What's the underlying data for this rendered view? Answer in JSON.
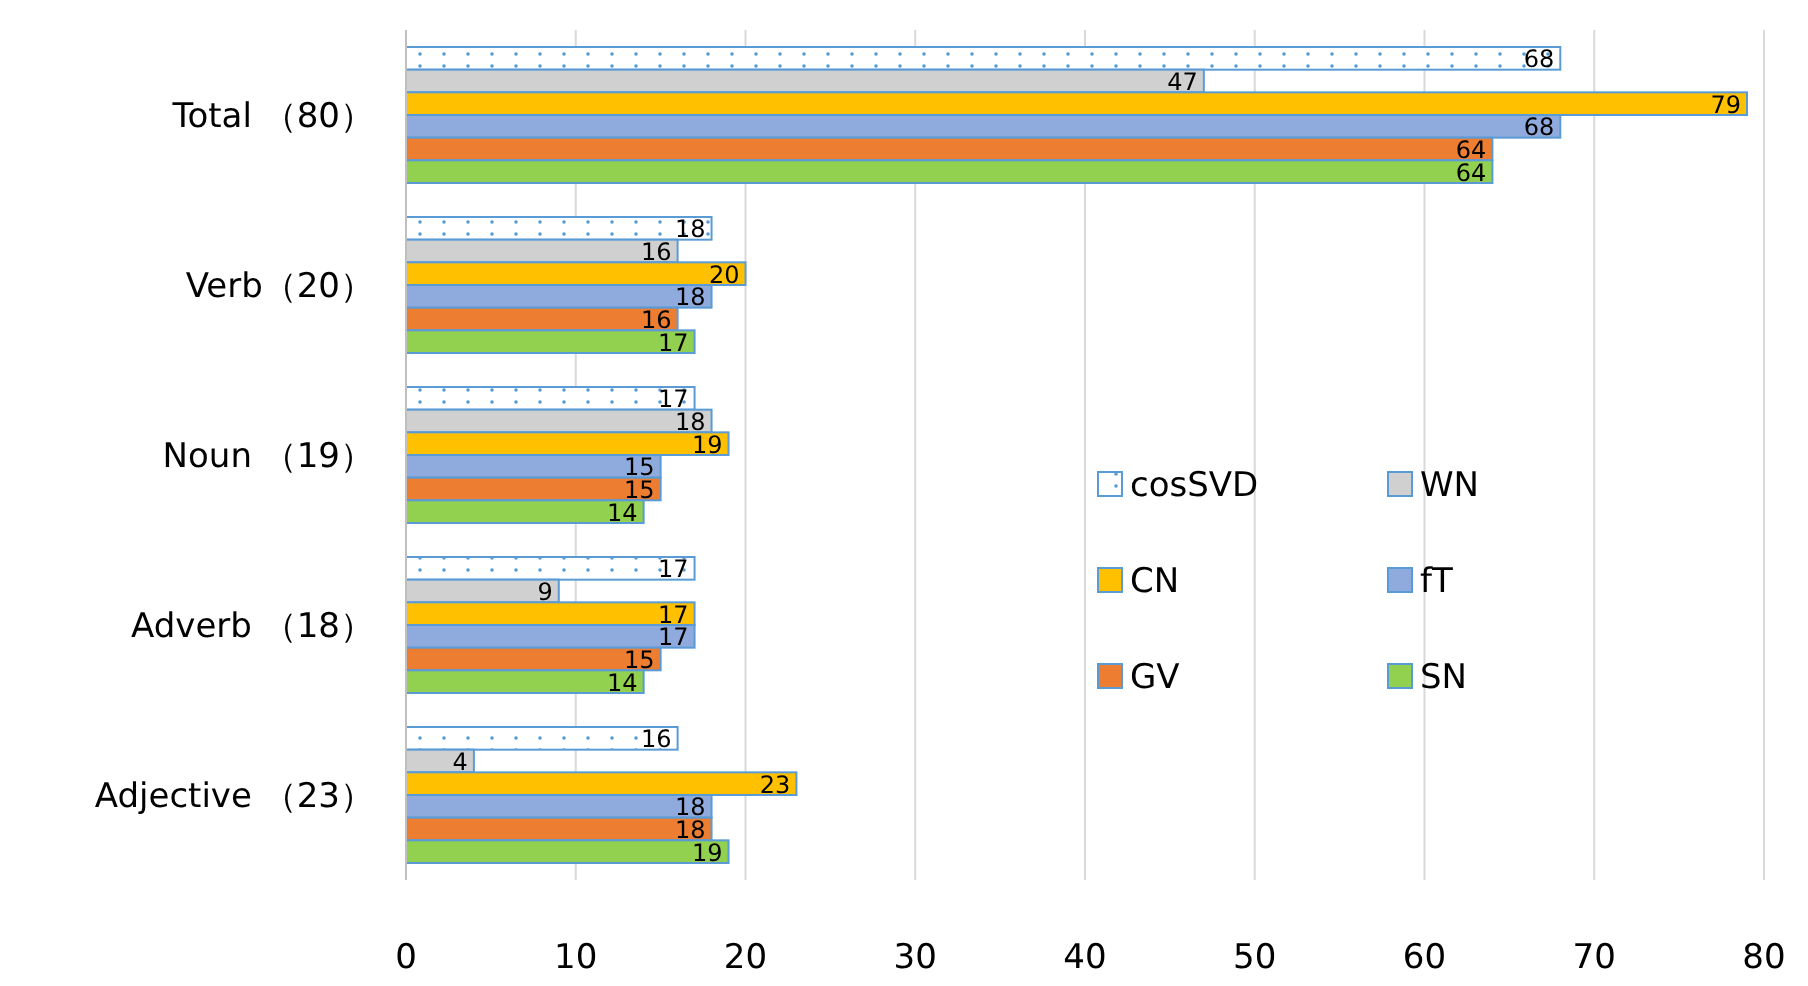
{
  "chart_data": {
    "type": "bar",
    "orientation": "horizontal",
    "categories": [
      "Total （80）",
      "Verb（20）",
      "Noun （19）",
      "Adverb （18）",
      "Adjective （23）"
    ],
    "series": [
      {
        "name": "cosSVD",
        "color": "#5b9bd5",
        "line_style": "dotted",
        "values": [
          68,
          18,
          17,
          17,
          16
        ]
      },
      {
        "name": "WN",
        "color": "#d0d0d0",
        "values": [
          47,
          16,
          18,
          9,
          4
        ]
      },
      {
        "name": "CN",
        "color": "#ffc000",
        "values": [
          79,
          20,
          19,
          17,
          23
        ]
      },
      {
        "name": "fT",
        "color": "#8faadc",
        "values": [
          68,
          18,
          15,
          17,
          18
        ]
      },
      {
        "name": "GV",
        "color": "#ed7d31",
        "values": [
          64,
          16,
          15,
          15,
          18
        ]
      },
      {
        "name": "SN",
        "color": "#92d050",
        "values": [
          64,
          17,
          14,
          14,
          19
        ]
      }
    ],
    "xlim": [
      0,
      80
    ],
    "xticks": [
      0,
      10,
      20,
      30,
      40,
      50,
      60,
      70,
      80
    ],
    "grid": "x",
    "legend": "right",
    "data_labels": true
  }
}
